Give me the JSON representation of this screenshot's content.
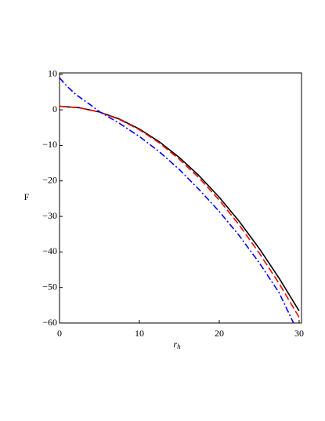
{
  "chart_data": {
    "type": "line",
    "x_label": "r",
    "x_label_subscript": "h",
    "y_label": "F",
    "xlim": [
      0,
      30.3
    ],
    "ylim": [
      -60,
      10.4
    ],
    "xticks": [
      0,
      10,
      20,
      30
    ],
    "yticks": [
      10,
      0,
      {
        "value": -10,
        "label": "−10"
      },
      {
        "value": -20,
        "label": "−20"
      },
      {
        "value": -30,
        "label": "−30"
      },
      {
        "value": -40,
        "label": "−40"
      },
      {
        "value": -50,
        "label": "−50"
      },
      {
        "value": -60,
        "label": "−60"
      }
    ],
    "grid": false,
    "series": [
      {
        "color": "#000000",
        "dash": "solid",
        "x": [
          0,
          2.5,
          5,
          7.5,
          10,
          12.5,
          15,
          17.5,
          20,
          22.5,
          25,
          27.5,
          30
        ],
        "values": [
          1,
          0.6,
          -0.6,
          -2.6,
          -5.4,
          -9,
          -13.4,
          -18.6,
          -24.6,
          -31.4,
          -39,
          -47.4,
          -56.6
        ]
      },
      {
        "color": "#ff0000",
        "dash": "dash",
        "x": [
          0,
          2.5,
          5,
          7.5,
          10,
          12.5,
          15,
          17.5,
          20,
          22.5,
          25,
          27.5,
          30
        ],
        "values": [
          1,
          0.6,
          -0.65,
          -2.7,
          -5.6,
          -9.3,
          -13.9,
          -19.2,
          -25.4,
          -32.4,
          -40.3,
          -48.9,
          -58.4
        ]
      },
      {
        "color": "#0000ff",
        "dash": "dashdot",
        "x": [
          0,
          1,
          2,
          3,
          4,
          5,
          7.5,
          10,
          12.5,
          15,
          17.5,
          20,
          22.5,
          25,
          27.5,
          29.3
        ],
        "values": [
          9,
          6.5,
          4.4,
          2.8,
          1.2,
          -0.5,
          -3.8,
          -7.5,
          -11.8,
          -16.8,
          -22.5,
          -28.6,
          -35.4,
          -43,
          -51.5,
          -60
        ]
      }
    ]
  }
}
